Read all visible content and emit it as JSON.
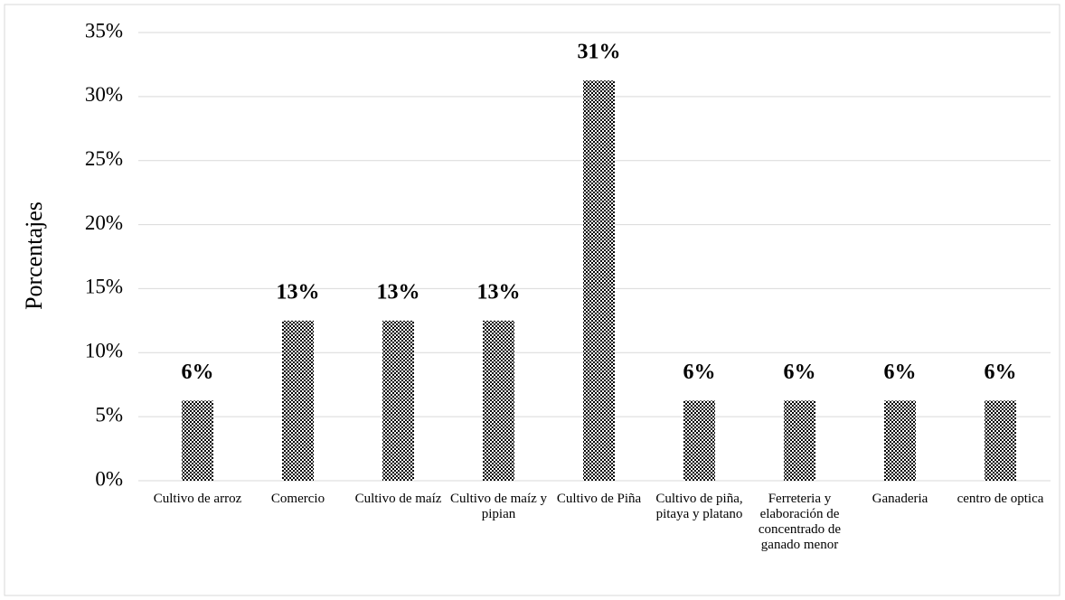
{
  "chart_data": {
    "type": "bar",
    "y_label": "Porcentajes",
    "categories": [
      "Cultivo de arroz",
      "Comercio",
      "Cultivo de maíz",
      "Cultivo de maíz y pipian",
      "Cultivo de Piña",
      "Cultivo de piña, pitaya y platano",
      "Ferreteria y elaboración de concentrado de ganado menor",
      "Ganaderia",
      "centro de optica"
    ],
    "values": [
      6.25,
      12.5,
      12.5,
      12.5,
      31.25,
      6.25,
      6.25,
      6.25,
      6.25
    ],
    "value_labels": [
      "6%",
      "13%",
      "13%",
      "13%",
      "31%",
      "6%",
      "6%",
      "6%",
      "6%"
    ],
    "color": "#000000",
    "ylim": [
      0,
      35
    ],
    "yticks": [
      {
        "value": 0,
        "label": "0%"
      },
      {
        "value": 5,
        "label": "5%"
      },
      {
        "value": 10,
        "label": "10%"
      },
      {
        "value": 15,
        "label": "15%"
      },
      {
        "value": 20,
        "label": "20%"
      },
      {
        "value": 25,
        "label": "25%"
      },
      {
        "value": 30,
        "label": "30%"
      },
      {
        "value": 35,
        "label": "35%"
      }
    ],
    "grid": true
  }
}
